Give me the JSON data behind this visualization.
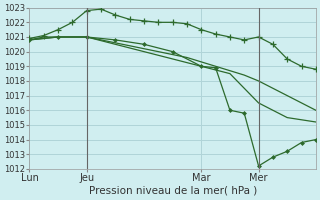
{
  "title": "Pression niveau de la mer( hPa )",
  "bg_color": "#d0eef0",
  "grid_color": "#b0d4d8",
  "line_color": "#2d6a2d",
  "ylim": [
    1012,
    1023
  ],
  "yticks": [
    1012,
    1013,
    1014,
    1015,
    1016,
    1017,
    1018,
    1019,
    1020,
    1021,
    1022,
    1023
  ],
  "total_hours": 60,
  "xtick_labels": [
    "Lun",
    "Jeu",
    "Mar",
    "Mer"
  ],
  "xtick_positions": [
    0,
    12,
    36,
    48
  ],
  "vlines_x": [
    12,
    48
  ],
  "line1_x": [
    0,
    3,
    6,
    9,
    12,
    15,
    18,
    21,
    24,
    27,
    30,
    33,
    36,
    39,
    42,
    45,
    48,
    51,
    54,
    57,
    60
  ],
  "line1": [
    1020.8,
    1021.0,
    1021.0,
    1021.0,
    1021.0,
    1020.8,
    1020.6,
    1020.4,
    1020.2,
    1020.0,
    1019.8,
    1019.6,
    1019.3,
    1019.0,
    1018.7,
    1018.4,
    1018.0,
    1017.5,
    1017.0,
    1016.5,
    1016.0
  ],
  "line2_x": [
    0,
    3,
    6,
    9,
    12,
    15,
    18,
    21,
    24,
    27,
    30,
    33,
    36,
    39,
    42,
    45,
    48,
    51,
    54,
    57,
    60
  ],
  "line2": [
    1020.9,
    1021.1,
    1021.5,
    1022.0,
    1022.8,
    1022.9,
    1022.5,
    1022.2,
    1022.1,
    1022.0,
    1022.0,
    1021.9,
    1021.5,
    1021.2,
    1021.0,
    1020.8,
    1021.0,
    1020.5,
    1019.5,
    1019.0,
    1018.8
  ],
  "line3_x": [
    0,
    6,
    12,
    18,
    24,
    30,
    36,
    42,
    48,
    54,
    60
  ],
  "line3": [
    1020.8,
    1021.0,
    1021.0,
    1020.5,
    1020.0,
    1019.5,
    1019.0,
    1018.5,
    1016.5,
    1015.5,
    1015.2
  ],
  "line4_x": [
    0,
    6,
    12,
    18,
    24,
    30,
    36,
    39,
    42,
    45,
    48,
    51,
    54,
    57,
    60
  ],
  "line4": [
    1020.8,
    1021.0,
    1021.0,
    1020.8,
    1020.5,
    1020.0,
    1019.0,
    1018.9,
    1016.0,
    1015.8,
    1012.2,
    1012.8,
    1013.2,
    1013.8,
    1014.0
  ],
  "marker_size": 3
}
